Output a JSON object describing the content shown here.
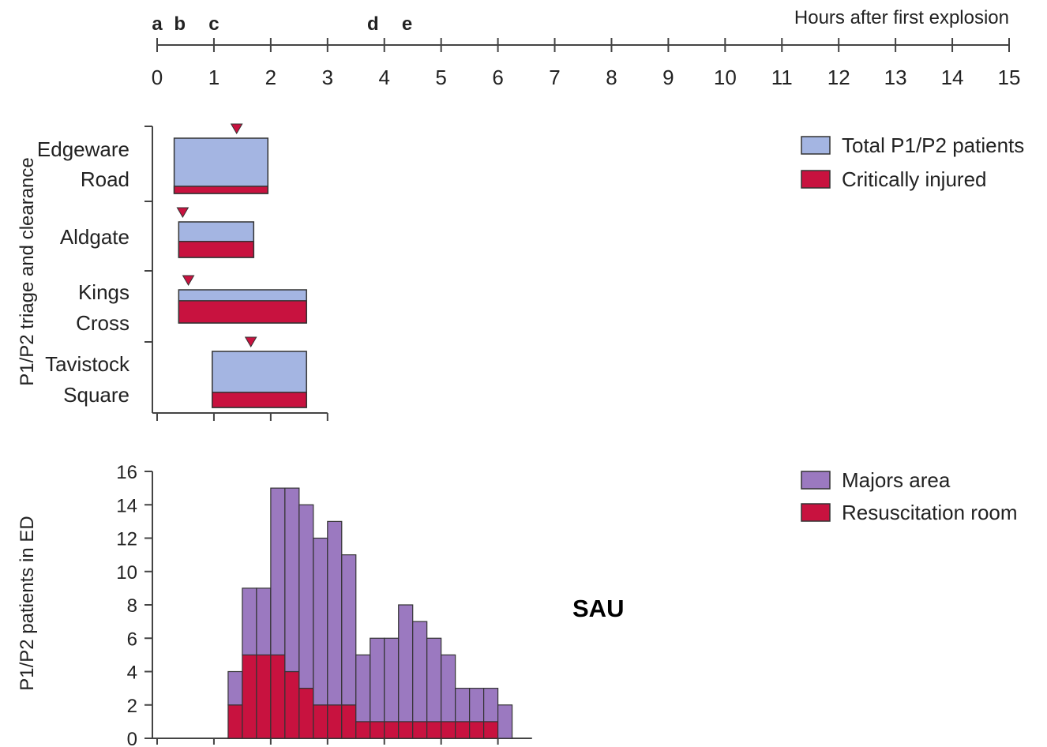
{
  "chart_data": [
    {
      "type": "timeline-axis",
      "title": "Hours after first explosion",
      "xlim": [
        0,
        15
      ],
      "ticks": [
        0,
        1,
        2,
        3,
        4,
        5,
        6,
        7,
        8,
        9,
        10,
        11,
        12,
        13,
        14,
        15
      ],
      "events": [
        {
          "label": "a",
          "x": 0.0
        },
        {
          "label": "b",
          "x": 0.4
        },
        {
          "label": "c",
          "x": 1.0
        },
        {
          "label": "d",
          "x": 3.8
        },
        {
          "label": "e",
          "x": 4.4
        }
      ]
    },
    {
      "type": "bar",
      "ylabel": "P1/P2 triage and clearance",
      "xlim": [
        0,
        3
      ],
      "categories": [
        "Edgeware\nRoad",
        "Aldgate",
        "Kings\nCross",
        "Tavistock\nSquare"
      ],
      "series": [
        {
          "name": "Total P1/P2 patients",
          "color": "#a4b5e2",
          "intervals": [
            [
              0.3,
              1.95
            ],
            [
              0.38,
              1.7
            ],
            [
              0.38,
              2.63
            ],
            [
              0.97,
              2.63
            ]
          ]
        },
        {
          "name": "Critically injured",
          "color": "#c8123f",
          "intervals": [
            [
              0.3,
              1.95
            ],
            [
              0.38,
              1.7
            ],
            [
              0.38,
              2.63
            ],
            [
              0.97,
              2.63
            ]
          ]
        }
      ],
      "critical_share": [
        0.13,
        0.45,
        0.67,
        0.27
      ],
      "marker_times": [
        1.4,
        0.45,
        0.55,
        1.65
      ],
      "legend": [
        "Total P1/P2 patients",
        "Critically injured"
      ],
      "legend_position": "top-right"
    },
    {
      "type": "bar",
      "stacked": true,
      "ylabel": "P1/P2 patients in ED",
      "ylim": [
        0,
        16
      ],
      "yticks": [
        0,
        2,
        4,
        6,
        8,
        10,
        12,
        14,
        16
      ],
      "bin_width_hours": 0.25,
      "x_start": [
        1.25,
        1.5,
        1.75,
        2.0,
        2.25,
        2.5,
        2.75,
        3.0,
        3.25,
        3.5,
        3.75,
        4.0,
        4.25,
        4.5,
        4.75,
        5.0,
        5.25,
        5.5,
        5.75,
        6.0
      ],
      "series": [
        {
          "name": "Majors area",
          "color": "#9b79c0",
          "values": [
            2,
            4,
            4,
            10,
            11,
            11,
            10,
            11,
            9,
            4,
            5,
            5,
            7,
            6,
            5,
            4,
            2,
            2,
            2,
            2
          ]
        },
        {
          "name": "Resuscitation room",
          "color": "#c8123f",
          "values": [
            2,
            5,
            5,
            5,
            4,
            3,
            2,
            2,
            2,
            1,
            1,
            1,
            1,
            1,
            1,
            1,
            1,
            1,
            1,
            0
          ]
        }
      ],
      "totals": [
        4,
        9,
        9,
        15,
        15,
        14,
        12,
        13,
        11,
        5,
        6,
        6,
        8,
        7,
        6,
        5,
        3,
        3,
        3,
        2
      ],
      "legend": [
        "Majors area",
        "Resuscitation room"
      ],
      "legend_position": "top-right",
      "annotation": "SAU"
    }
  ]
}
